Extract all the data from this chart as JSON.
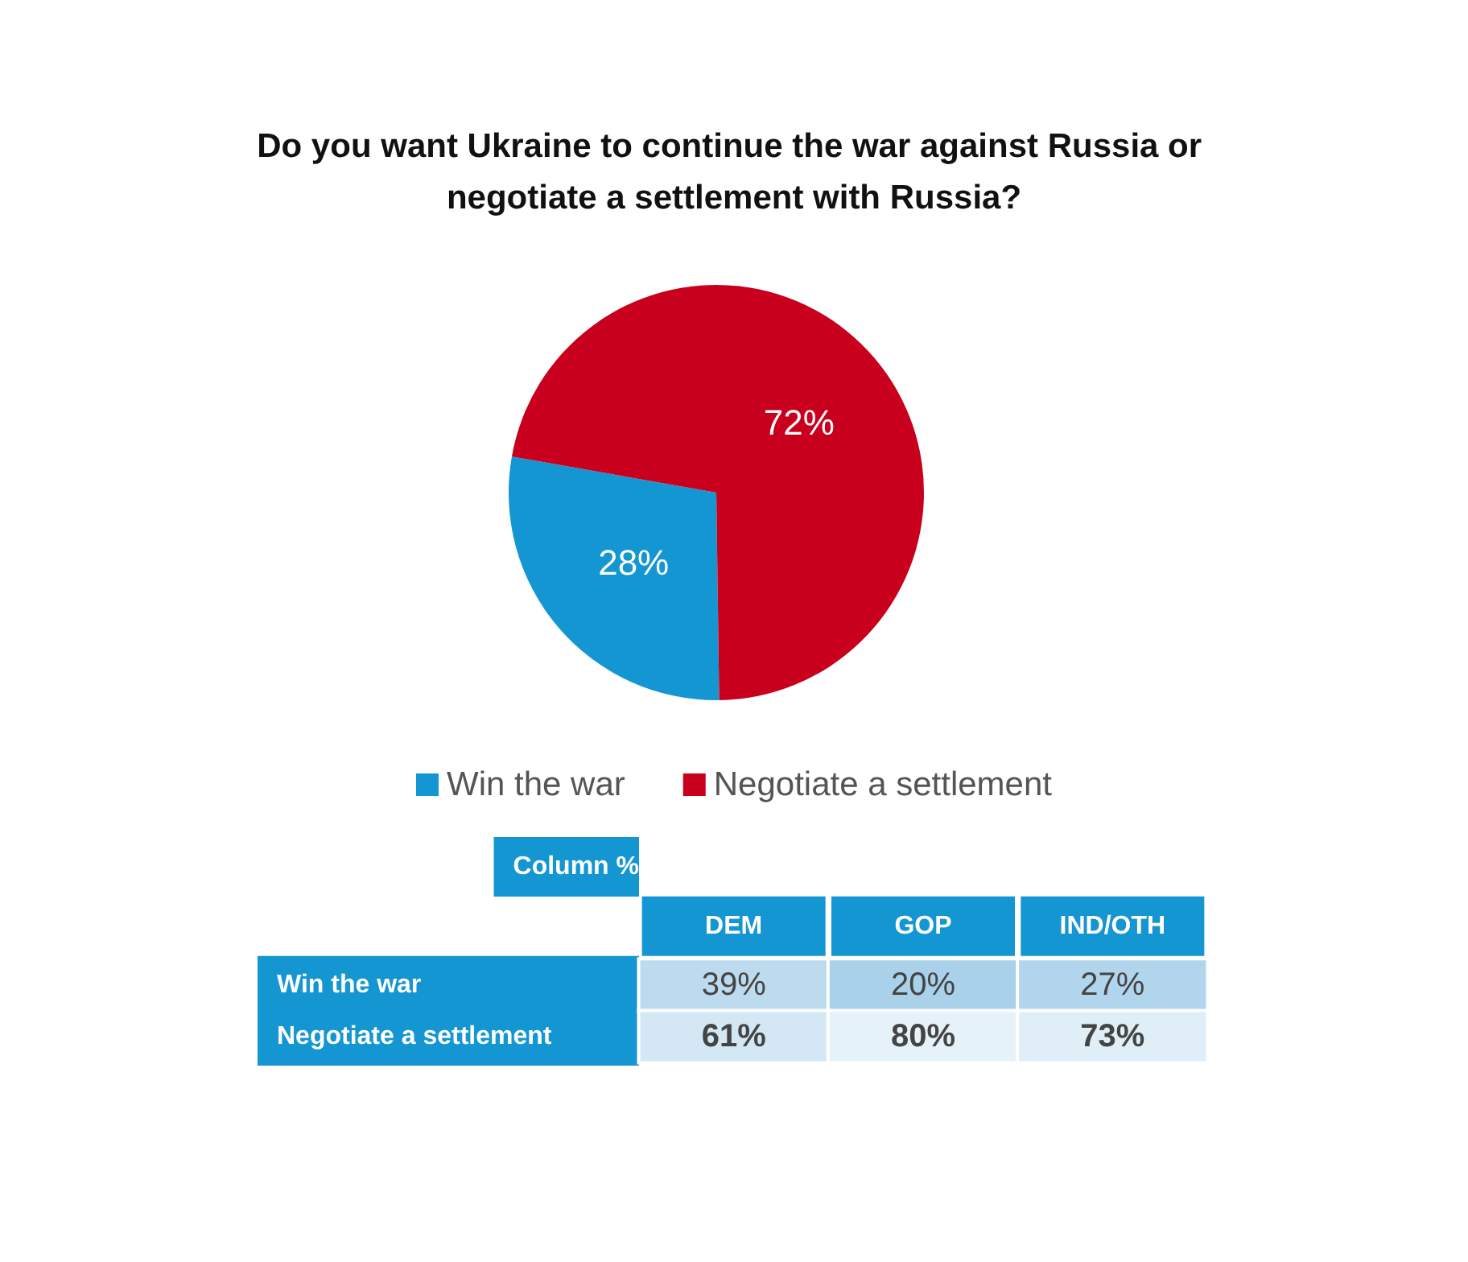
{
  "chart_data": [
    {
      "type": "pie",
      "title": "Do you want Ukraine to continue the war against Russia or negotiate a settlement with Russia?",
      "categories": [
        "Win the war",
        "Negotiate a settlement"
      ],
      "values": [
        28,
        72
      ],
      "colors": [
        "#1396d2",
        "#c8001e"
      ],
      "value_labels": [
        "28%",
        "72%"
      ],
      "legend": "bottom"
    },
    {
      "type": "heatmap",
      "ylabel": "Column %",
      "categories": [
        "DEM",
        "GOP",
        "IND/OTH"
      ],
      "y_categories": [
        "Win the war",
        "Negotiate a settlement"
      ],
      "cells": [
        [
          39,
          20,
          27
        ],
        [
          61,
          80,
          73
        ]
      ],
      "cell_labels": [
        [
          "39%",
          "20%",
          "27%"
        ],
        [
          "61%",
          "80%",
          "73%"
        ]
      ]
    }
  ]
}
